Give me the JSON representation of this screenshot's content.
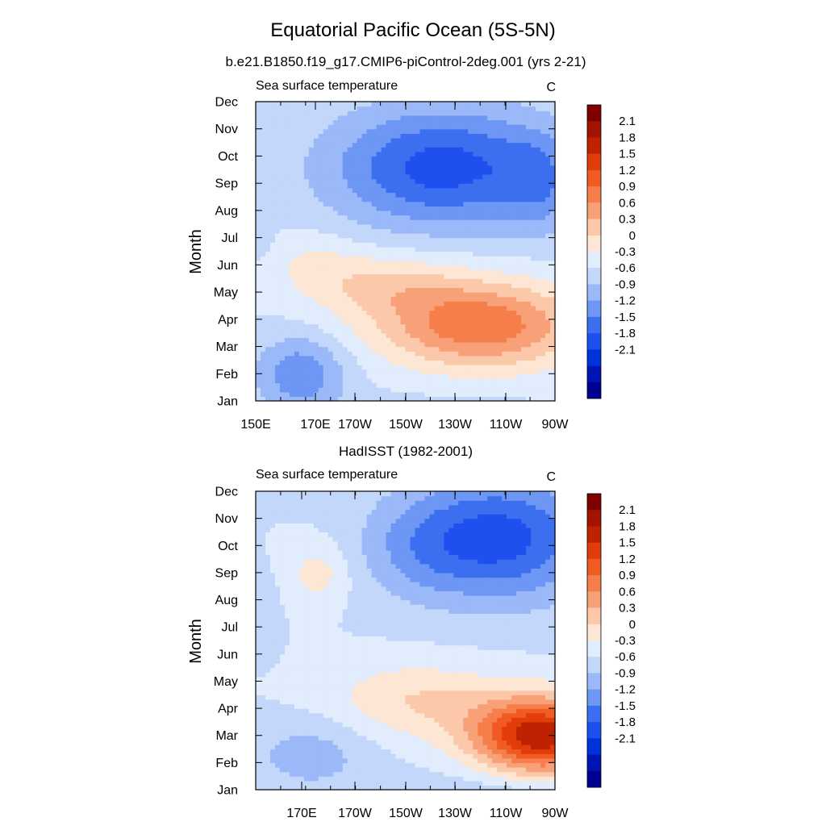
{
  "title": "Equatorial Pacific Ocean (5S-5N)",
  "colors": [
    "#000090",
    "#0014b4",
    "#0032dc",
    "#1e50f0",
    "#3c6ef0",
    "#6e96f5",
    "#9bb9f8",
    "#c3d7fb",
    "#e1ecfd",
    "#fde6d3",
    "#fbc8aa",
    "#f8a078",
    "#f57e4b",
    "#f05a23",
    "#e13c0a",
    "#be2200",
    "#a01400",
    "#800000"
  ],
  "chart_data": [
    {
      "type": "contour",
      "panel_title": "b.e21.B1850.f19_g17.CMIP6-piControl-2deg.001 (yrs 2-21)",
      "left_label": "Sea surface temperature",
      "right_label": "C",
      "ylabel": "Month",
      "x_ticks": [
        "150E",
        "170E",
        "170W",
        "150W",
        "130W",
        "110W",
        "90W"
      ],
      "y_ticks": [
        "Jan",
        "Feb",
        "Mar",
        "Apr",
        "May",
        "Jun",
        "Jul",
        "Aug",
        "Sep",
        "Oct",
        "Nov",
        "Dec"
      ],
      "xlim": [
        150,
        270
      ],
      "levels": [
        -2.1,
        -1.8,
        -1.5,
        -1.2,
        -0.9,
        -0.6,
        -0.3,
        0,
        0.3,
        0.6,
        0.9,
        1.2,
        1.5,
        1.8,
        2.1
      ],
      "colorbar_labels": [
        "2.1",
        "1.8",
        "1.5",
        "1.2",
        "0.9",
        "0.6",
        "0.3",
        "0",
        "-0.3",
        "-0.6",
        "-0.9",
        "-1.2",
        "-1.5",
        "-1.8",
        "-2.1"
      ],
      "features": [
        {
          "lon": 168,
          "month": 2.0,
          "amp": -0.85,
          "slon": 18,
          "smon": 1.4
        },
        {
          "lon": 225,
          "month": 9.6,
          "amp": -1.35,
          "slon": 45,
          "smon": 2.2
        },
        {
          "lon": 264,
          "month": 9.0,
          "amp": -0.5,
          "slon": 15,
          "smon": 1.8
        },
        {
          "lon": 240,
          "month": 3.8,
          "amp": 1.45,
          "slon": 40,
          "smon": 1.6
        },
        {
          "lon": 200,
          "month": 5.3,
          "amp": 0.55,
          "slon": 32,
          "smon": 1.2
        },
        {
          "lon": 172,
          "month": 6.2,
          "amp": 0.25,
          "slon": 20,
          "smon": 1.1
        },
        {
          "lon": 152,
          "month": 7.0,
          "amp": -0.2,
          "slon": 5,
          "smon": 1.0
        }
      ]
    },
    {
      "type": "contour",
      "panel_title": "HadISST (1982-2001)",
      "left_label": "Sea surface temperature",
      "right_label": "C",
      "ylabel": "Month",
      "x_ticks": [
        "170E",
        "170W",
        "150W",
        "130W",
        "110W",
        "90W"
      ],
      "y_ticks": [
        "Jan",
        "Feb",
        "Mar",
        "Apr",
        "May",
        "Jun",
        "Jul",
        "Aug",
        "Sep",
        "Oct",
        "Nov",
        "Dec"
      ],
      "xlim": [
        150,
        270
      ],
      "levels": [
        -2.1,
        -1.8,
        -1.5,
        -1.2,
        -0.9,
        -0.6,
        -0.3,
        0,
        0.3,
        0.6,
        0.9,
        1.2,
        1.5,
        1.8,
        2.1
      ],
      "colorbar_labels": [
        "2.1",
        "1.8",
        "1.5",
        "1.2",
        "0.9",
        "0.6",
        "0.3",
        "0",
        "-0.3",
        "-0.6",
        "-0.9",
        "-1.2",
        "-1.5",
        "-1.8",
        "-2.1"
      ],
      "features": [
        {
          "lon": 172,
          "month": 2.3,
          "amp": -0.45,
          "slon": 25,
          "smon": 1.4
        },
        {
          "lon": 250,
          "month": 10.3,
          "amp": -1.3,
          "slon": 35,
          "smon": 2.3
        },
        {
          "lon": 215,
          "month": 10.0,
          "amp": -0.5,
          "slon": 25,
          "smon": 2.0
        },
        {
          "lon": 264,
          "month": 3.0,
          "amp": 2.35,
          "slon": 27,
          "smon": 1.4
        },
        {
          "lon": 215,
          "month": 4.3,
          "amp": 0.6,
          "slon": 35,
          "smon": 1.4
        },
        {
          "lon": 175,
          "month": 9.0,
          "amp": 0.45,
          "slon": 12,
          "smon": 1.1
        },
        {
          "lon": 153,
          "month": 7.5,
          "amp": -0.2,
          "slon": 6,
          "smon": 1.4
        }
      ]
    }
  ]
}
